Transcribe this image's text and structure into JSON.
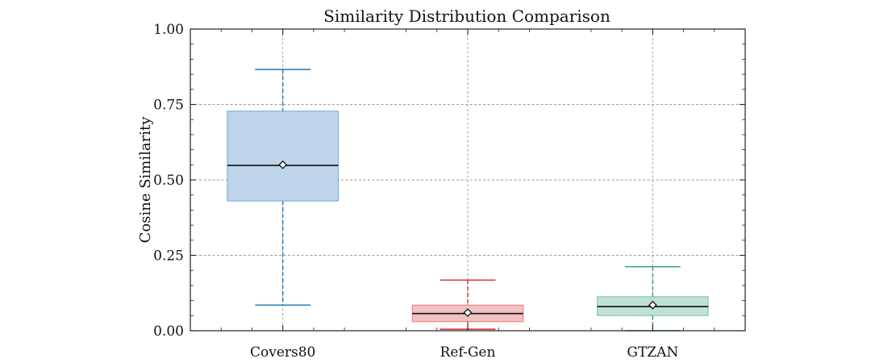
{
  "chart_data": {
    "type": "box",
    "title": "Similarity Distribution Comparison",
    "ylabel": "Cosine Similarity",
    "xlabel": "",
    "ylim": [
      0.0,
      1.0
    ],
    "y_ticks": [
      0.0,
      0.25,
      0.5,
      0.75,
      1.0
    ],
    "y_tick_labels": [
      "0.00",
      "0.25",
      "0.50",
      "0.75",
      "1.00"
    ],
    "grid": true,
    "categories": [
      "Covers80",
      "Ref-Gen",
      "GTZAN"
    ],
    "boxes": [
      {
        "category": "Covers80",
        "whisker_low": 0.085,
        "q1": 0.43,
        "median": 0.548,
        "mean": 0.55,
        "q3": 0.728,
        "whisker_high": 0.866,
        "color": "#1f77b4",
        "fill": "#bdd4ea"
      },
      {
        "category": "Ref-Gen",
        "whisker_low": 0.005,
        "q1": 0.03,
        "median": 0.057,
        "mean": 0.06,
        "q3": 0.085,
        "whisker_high": 0.168,
        "color": "#d62728",
        "fill": "#f0c2c3"
      },
      {
        "category": "GTZAN",
        "whisker_low": 0.0,
        "q1": 0.05,
        "median": 0.08,
        "mean": 0.085,
        "q3": 0.113,
        "whisker_high": 0.212,
        "color": "#2a9d76",
        "fill": "#bfe0d3"
      }
    ]
  }
}
